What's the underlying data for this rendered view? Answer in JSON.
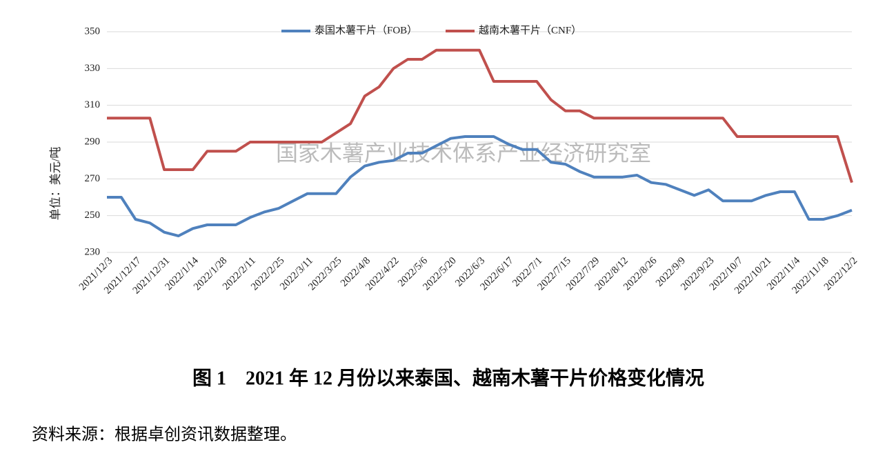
{
  "chart_data": {
    "type": "line",
    "caption": "图 1　2021 年 12 月份以来泰国、越南木薯干片价格变化情况",
    "source": "资料来源：根据卓创资讯数据整理。",
    "ylabel": "单位：美元/吨",
    "watermark": "国家木薯产业技术体系产业经济研究室",
    "categories": [
      "2021/12/3",
      null,
      "2021/12/17",
      null,
      "2021/12/31",
      null,
      "2022/1/14",
      null,
      "2022/1/28",
      null,
      "2022/2/11",
      null,
      "2022/2/25",
      null,
      "2022/3/11",
      null,
      "2022/3/25",
      null,
      "2022/4/8",
      null,
      "2022/4/22",
      null,
      "2022/5/6",
      null,
      "2022/5/20",
      null,
      "2022/6/3",
      null,
      "2022/6/17",
      null,
      "2022/7/1",
      null,
      "2022/7/15",
      null,
      "2022/7/29",
      null,
      "2022/8/12",
      null,
      "2022/8/26",
      null,
      "2022/9/9",
      null,
      "2022/9/23",
      null,
      "2022/10/7",
      null,
      "2022/10/21",
      null,
      "2022/11/4",
      null,
      "2022/11/18",
      null,
      "2022/12/2"
    ],
    "series": [
      {
        "name": "泰国木薯干片（FOB）",
        "color": "#4f81bd",
        "values": [
          260,
          260,
          248,
          246,
          241,
          239,
          243,
          245,
          245,
          245,
          249,
          252,
          254,
          258,
          262,
          262,
          262,
          271,
          277,
          279,
          280,
          284,
          284,
          288,
          292,
          293,
          293,
          293,
          289,
          286,
          286,
          279,
          278,
          274,
          271,
          271,
          271,
          272,
          268,
          267,
          264,
          261,
          264,
          258,
          258,
          258,
          261,
          263,
          263,
          248,
          248,
          250,
          253
        ]
      },
      {
        "name": "越南木薯干片（CNF）",
        "color": "#c0504d",
        "values": [
          303,
          303,
          303,
          303,
          275,
          275,
          275,
          285,
          285,
          285,
          290,
          290,
          290,
          290,
          290,
          290,
          295,
          300,
          315,
          320,
          330,
          335,
          335,
          340,
          340,
          340,
          340,
          323,
          323,
          323,
          323,
          313,
          307,
          307,
          303,
          303,
          303,
          303,
          303,
          303,
          303,
          303,
          303,
          303,
          293,
          293,
          293,
          293,
          293,
          293,
          293,
          293,
          268
        ]
      }
    ],
    "ylim": [
      230,
      350
    ],
    "yticks": [
      230,
      250,
      270,
      290,
      310,
      330,
      350
    ],
    "grid": true
  }
}
